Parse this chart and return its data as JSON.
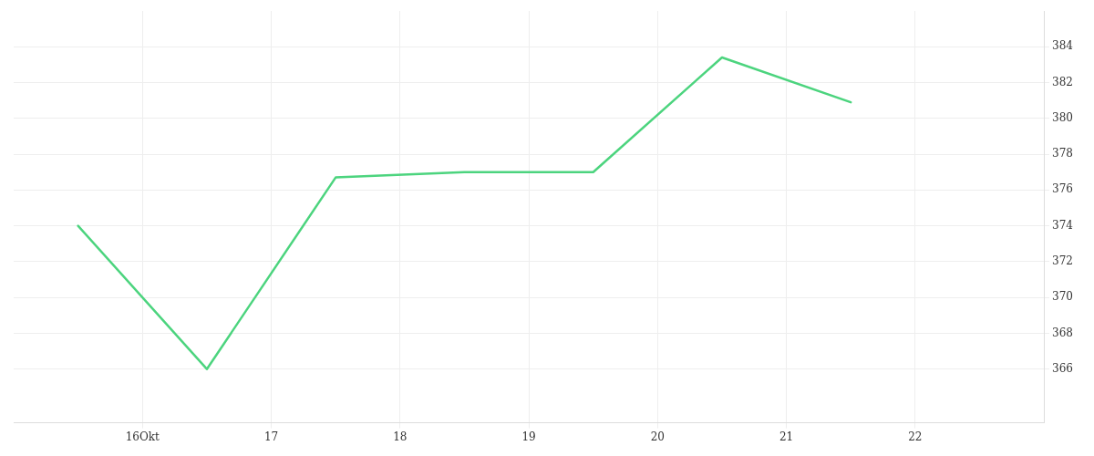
{
  "chart_data": {
    "type": "line",
    "x": [
      15.5,
      16.5,
      17.5,
      18.5,
      19.5,
      20.5,
      21.5
    ],
    "series": [
      {
        "color": "#4cd47e",
        "values": [
          374,
          366,
          376.7,
          377,
          377,
          383.4,
          380.9
        ]
      }
    ],
    "xlim": [
      15,
      23
    ],
    "xticks": [
      {
        "value": 16,
        "label": "16Okt"
      },
      17,
      18,
      19,
      20,
      21,
      22
    ],
    "ylim": [
      363,
      386
    ],
    "yticks": [
      366,
      368,
      370,
      372,
      374,
      376,
      378,
      380,
      382,
      384
    ],
    "grid": true,
    "legend": false,
    "marker": "none",
    "line_style": "solid"
  }
}
